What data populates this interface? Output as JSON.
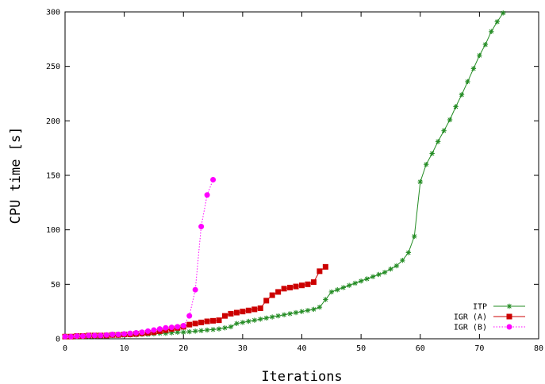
{
  "chart_data": {
    "type": "line",
    "title": "",
    "xlabel": "Iterations",
    "ylabel": "CPU time [s]",
    "xlim": [
      0,
      80
    ],
    "ylim": [
      0,
      300
    ],
    "xticks": [
      "0",
      "10",
      "20",
      "30",
      "40",
      "50",
      "60",
      "70",
      "80"
    ],
    "yticks": [
      "0",
      "50",
      "100",
      "150",
      "200",
      "250",
      "300"
    ],
    "grid": false,
    "legend_position": "bottom-right",
    "series": [
      {
        "name": "ITP",
        "color": "#228b22",
        "marker": "star",
        "line": "solid",
        "x": [
          0,
          1,
          2,
          3,
          4,
          5,
          6,
          7,
          8,
          9,
          10,
          11,
          12,
          13,
          14,
          15,
          16,
          17,
          18,
          19,
          20,
          21,
          22,
          23,
          24,
          25,
          26,
          27,
          28,
          29,
          30,
          31,
          32,
          33,
          34,
          35,
          36,
          37,
          38,
          39,
          40,
          41,
          42,
          43,
          44,
          45,
          46,
          47,
          48,
          49,
          50,
          51,
          52,
          53,
          54,
          55,
          56,
          57,
          58,
          59,
          60,
          61,
          62,
          63,
          64,
          65,
          66,
          67,
          68,
          69,
          70,
          71,
          72,
          73,
          74
        ],
        "y": [
          2,
          2,
          2,
          2,
          2,
          2,
          2.5,
          2.5,
          3,
          3,
          3,
          3.5,
          3.5,
          4,
          4,
          4.5,
          5,
          5,
          5.5,
          6,
          6,
          6.5,
          7,
          7.5,
          8,
          8.5,
          9,
          10,
          11,
          14,
          15,
          16,
          17,
          18,
          19,
          20,
          21,
          22,
          23,
          24,
          25,
          26,
          27,
          29,
          36,
          43,
          45,
          47,
          49,
          51,
          53,
          55,
          57,
          59,
          61,
          64,
          67,
          72,
          79,
          94,
          144,
          160,
          170,
          181,
          191,
          201,
          213,
          224,
          236,
          248,
          260,
          270,
          282,
          291,
          299
        ]
      },
      {
        "name": "IGR (A)",
        "color": "#cc0000",
        "marker": "square",
        "line": "solid",
        "x": [
          0,
          1,
          2,
          3,
          4,
          5,
          6,
          7,
          8,
          9,
          10,
          11,
          12,
          13,
          14,
          15,
          16,
          17,
          18,
          19,
          20,
          21,
          22,
          23,
          24,
          25,
          26,
          27,
          28,
          29,
          30,
          31,
          32,
          33,
          34,
          35,
          36,
          37,
          38,
          39,
          40,
          41,
          42,
          43,
          44
        ],
        "y": [
          2,
          2,
          2.5,
          2.5,
          3,
          3,
          3,
          3,
          3.5,
          3.5,
          4,
          4,
          4.5,
          5,
          5.5,
          6,
          7,
          8,
          9,
          10,
          11,
          13,
          14,
          15,
          16,
          16.5,
          17,
          21,
          23,
          24,
          25,
          26,
          27,
          28,
          35,
          40,
          43,
          46,
          47,
          48,
          49,
          50,
          52,
          62,
          66
        ]
      },
      {
        "name": "IGR (B)",
        "color": "#ff00ff",
        "marker": "circle",
        "line": "dotted",
        "x": [
          0,
          1,
          2,
          3,
          4,
          5,
          6,
          7,
          8,
          9,
          10,
          11,
          12,
          13,
          14,
          15,
          16,
          17,
          18,
          19,
          20,
          21,
          22,
          23,
          24,
          25
        ],
        "y": [
          2,
          2,
          2.5,
          2.5,
          3,
          3,
          3,
          3.5,
          4,
          4,
          4.5,
          5,
          5.5,
          6,
          7,
          8,
          9,
          10,
          10.5,
          11,
          12,
          21,
          45,
          103,
          132,
          146
        ]
      }
    ]
  }
}
